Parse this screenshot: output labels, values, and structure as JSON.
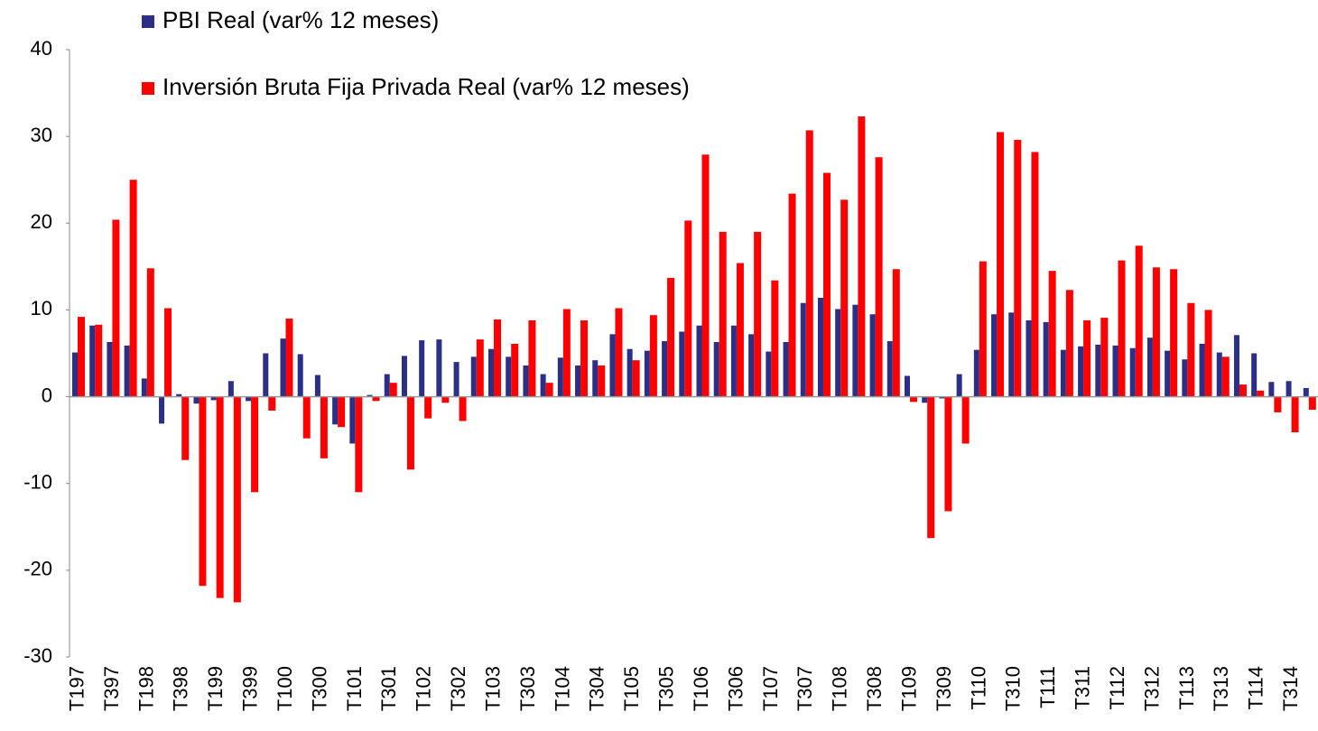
{
  "chart_data": {
    "type": "bar",
    "categories": [
      "T197",
      null,
      "T397",
      null,
      "T198",
      null,
      "T398",
      null,
      "T199",
      null,
      "T399",
      null,
      "T100",
      null,
      "T300",
      null,
      "T101",
      null,
      "T301",
      null,
      "T102",
      null,
      "T302",
      null,
      "T103",
      null,
      "T303",
      null,
      "T104",
      null,
      "T304",
      null,
      "T105",
      null,
      "T305",
      null,
      "T106",
      null,
      "T306",
      null,
      "T107",
      null,
      "T307",
      null,
      "T108",
      null,
      "T308",
      null,
      "T109",
      null,
      "T309",
      null,
      "T110",
      null,
      "T310",
      null,
      "T111",
      null,
      "T311",
      null,
      "T112",
      null,
      "T312",
      null,
      "T113",
      null,
      "T313",
      null,
      "T114",
      null,
      "T314",
      null
    ],
    "series": [
      {
        "name": "PBI Real (var% 12 meses)",
        "color": "#2b2f86",
        "values": [
          5.1,
          8.2,
          6.3,
          5.9,
          2.1,
          -3.1,
          0.3,
          -0.8,
          -0.4,
          1.8,
          -0.5,
          5.0,
          6.7,
          4.9,
          2.5,
          -3.2,
          -5.4,
          0.2,
          2.6,
          4.7,
          6.5,
          6.6,
          4.0,
          4.6,
          5.5,
          4.6,
          3.6,
          2.6,
          4.5,
          3.6,
          4.2,
          7.2,
          5.5,
          5.3,
          6.4,
          7.5,
          8.2,
          6.3,
          8.2,
          7.2,
          5.2,
          6.3,
          10.8,
          11.4,
          10.1,
          10.6,
          9.5,
          6.4,
          2.4,
          -0.7,
          -0.2,
          2.6,
          5.4,
          9.5,
          9.7,
          8.8,
          8.6,
          5.4,
          5.8,
          6.0,
          5.9,
          5.6,
          6.8,
          5.3,
          4.3,
          6.1,
          5.1,
          7.1,
          5.0,
          1.7,
          1.8,
          1.0
        ]
      },
      {
        "name": "Inversión Bruta Fija Privada Real (var% 12 meses)",
        "color": "#ff0000",
        "values": [
          9.2,
          8.3,
          20.4,
          25.0,
          14.8,
          10.2,
          -7.3,
          -21.8,
          -23.2,
          -23.7,
          -11.0,
          -1.6,
          9.0,
          -4.8,
          -7.1,
          -3.5,
          -11.0,
          -0.5,
          1.6,
          -8.4,
          -2.5,
          -0.7,
          -2.8,
          6.6,
          8.9,
          6.1,
          8.8,
          1.6,
          10.1,
          8.8,
          3.6,
          10.2,
          4.2,
          9.4,
          13.7,
          20.3,
          27.9,
          19.0,
          15.4,
          19.0,
          13.4,
          23.4,
          30.7,
          25.8,
          22.7,
          32.3,
          27.6,
          14.7,
          -0.6,
          -16.3,
          -13.2,
          -5.4,
          15.6,
          30.5,
          29.6,
          28.2,
          14.5,
          12.3,
          8.8,
          9.1,
          15.7,
          17.4,
          14.9,
          14.7,
          10.8,
          10.0,
          4.6,
          1.4,
          0.7,
          -1.8,
          -4.1,
          -1.5
        ]
      }
    ],
    "ylim": [
      -30,
      40
    ],
    "yticks": [
      -30,
      -20,
      -10,
      0,
      10,
      20,
      30,
      40
    ]
  }
}
